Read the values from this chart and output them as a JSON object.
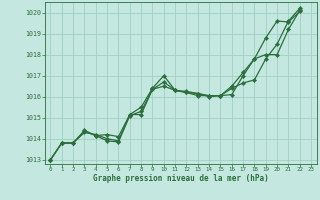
{
  "title": "Graphe pression niveau de la mer (hPa)",
  "bg_color": "#c4e8e0",
  "grid_color": "#9ecfc4",
  "line_color": "#2d6e3e",
  "xlim": [
    -0.5,
    23.5
  ],
  "ylim": [
    1012.8,
    1020.5
  ],
  "yticks": [
    1013,
    1014,
    1015,
    1016,
    1017,
    1018,
    1019,
    1020
  ],
  "xticks": [
    0,
    1,
    2,
    3,
    4,
    5,
    6,
    7,
    8,
    9,
    10,
    11,
    12,
    13,
    14,
    15,
    16,
    17,
    18,
    19,
    20,
    21,
    22,
    23
  ],
  "line1_x": [
    0,
    1,
    2,
    3,
    4,
    5,
    6,
    7,
    8,
    9,
    10,
    11,
    12,
    13,
    14,
    15,
    16,
    17,
    18,
    19,
    20,
    21,
    22
  ],
  "line1_y": [
    1013.0,
    1013.8,
    1013.8,
    1014.35,
    1014.15,
    1013.9,
    1013.85,
    1015.1,
    1015.3,
    1016.35,
    1016.7,
    1016.3,
    1016.2,
    1016.15,
    1016.05,
    1016.05,
    1016.1,
    1017.0,
    1017.8,
    1018.8,
    1019.6,
    1019.55,
    1020.05
  ],
  "line2_x": [
    0,
    1,
    2,
    3,
    4,
    5,
    6,
    7,
    8,
    9,
    10,
    11,
    12,
    13,
    14,
    15,
    16,
    17,
    18,
    19,
    20,
    21,
    22
  ],
  "line2_y": [
    1013.0,
    1013.8,
    1013.8,
    1014.4,
    1014.15,
    1014.2,
    1014.1,
    1015.15,
    1015.5,
    1016.4,
    1017.0,
    1016.3,
    1016.25,
    1016.15,
    1016.0,
    1016.05,
    1016.5,
    1017.15,
    1017.8,
    1018.0,
    1018.0,
    1019.2,
    1020.1
  ],
  "line3_x": [
    0,
    1,
    2,
    3,
    4,
    5,
    6,
    7,
    8,
    9,
    10,
    11,
    12,
    13,
    14,
    15,
    16,
    17,
    18,
    19,
    20,
    21,
    22
  ],
  "line3_y": [
    1013.0,
    1013.8,
    1013.8,
    1014.3,
    1014.2,
    1014.0,
    1013.9,
    1015.15,
    1015.15,
    1016.35,
    1016.5,
    1016.3,
    1016.2,
    1016.05,
    1016.05,
    1016.05,
    1016.4,
    1016.65,
    1016.8,
    1017.8,
    1018.5,
    1019.6,
    1020.2
  ],
  "marker_size": 2.2,
  "linewidth": 0.9
}
